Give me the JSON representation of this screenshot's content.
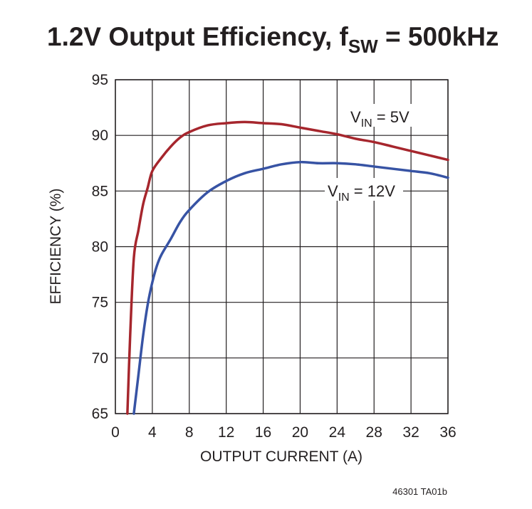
{
  "chart_data": {
    "type": "line",
    "title": {
      "main": "1.2V Output Efficiency, f",
      "sub": "SW",
      "rest": " = 500kHz"
    },
    "xlabel": "OUTPUT CURRENT (A)",
    "ylabel": "EFFICIENCY (%)",
    "xlim": [
      0,
      36
    ],
    "ylim": [
      65,
      95
    ],
    "x_ticks": [
      "0",
      "4",
      "8",
      "12",
      "16",
      "20",
      "24",
      "28",
      "32",
      "36"
    ],
    "y_ticks": [
      "65",
      "70",
      "75",
      "80",
      "85",
      "90",
      "95"
    ],
    "grid": true,
    "footnote": "46301 TA01b",
    "series": [
      {
        "name": "VIN = 5V",
        "label": {
          "prefix": "V",
          "sub": "IN",
          "suffix": " = 5V"
        },
        "color": "#a6262d",
        "points": [
          [
            1.3,
            65.0
          ],
          [
            1.6,
            72.0
          ],
          [
            2.0,
            79.0
          ],
          [
            2.5,
            81.5
          ],
          [
            3.0,
            83.8
          ],
          [
            3.5,
            85.3
          ],
          [
            4.0,
            86.8
          ],
          [
            5.0,
            88.0
          ],
          [
            6.0,
            89.0
          ],
          [
            7.0,
            89.8
          ],
          [
            8.0,
            90.3
          ],
          [
            10.0,
            90.9
          ],
          [
            12.0,
            91.1
          ],
          [
            14.0,
            91.2
          ],
          [
            16.0,
            91.1
          ],
          [
            18.0,
            91.0
          ],
          [
            20.0,
            90.7
          ],
          [
            22.0,
            90.4
          ],
          [
            24.0,
            90.1
          ],
          [
            26.0,
            89.7
          ],
          [
            28.0,
            89.4
          ],
          [
            30.0,
            89.0
          ],
          [
            32.0,
            88.6
          ],
          [
            34.0,
            88.2
          ],
          [
            36.0,
            87.8
          ]
        ]
      },
      {
        "name": "VIN = 12V",
        "label": {
          "prefix": "V",
          "sub": "IN",
          "suffix": " = 12V"
        },
        "color": "#3753a4",
        "points": [
          [
            2.0,
            65.0
          ],
          [
            2.5,
            68.5
          ],
          [
            3.0,
            72.0
          ],
          [
            3.5,
            74.8
          ],
          [
            4.0,
            76.8
          ],
          [
            4.5,
            78.3
          ],
          [
            5.0,
            79.3
          ],
          [
            6.0,
            80.7
          ],
          [
            7.0,
            82.2
          ],
          [
            8.0,
            83.3
          ],
          [
            10.0,
            84.9
          ],
          [
            12.0,
            85.9
          ],
          [
            14.0,
            86.6
          ],
          [
            16.0,
            87.0
          ],
          [
            18.0,
            87.4
          ],
          [
            20.0,
            87.6
          ],
          [
            22.0,
            87.5
          ],
          [
            24.0,
            87.5
          ],
          [
            26.0,
            87.4
          ],
          [
            28.0,
            87.2
          ],
          [
            30.0,
            87.0
          ],
          [
            32.0,
            86.8
          ],
          [
            34.0,
            86.6
          ],
          [
            36.0,
            86.2
          ]
        ]
      }
    ]
  }
}
